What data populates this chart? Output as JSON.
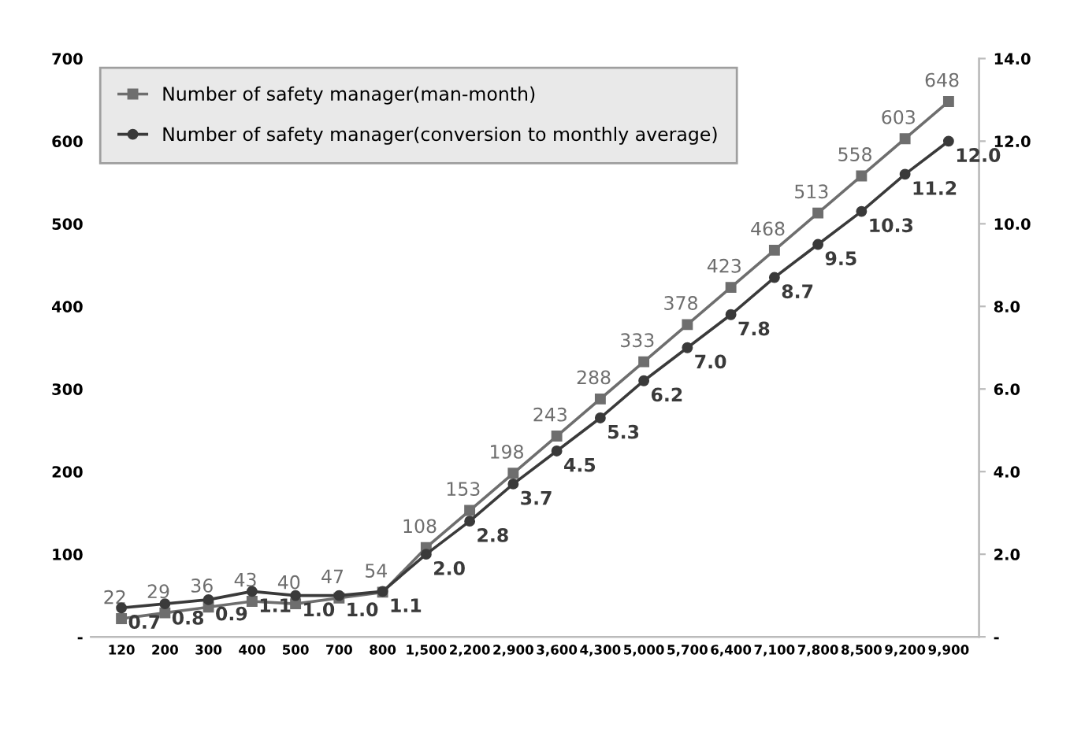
{
  "chart_data": {
    "type": "line",
    "categories": [
      "120",
      "200",
      "300",
      "400",
      "500",
      "700",
      "800",
      "1,500",
      "2,200",
      "2,900",
      "3,600",
      "4,300",
      "5,000",
      "5,700",
      "6,400",
      "7,100",
      "7,800",
      "8,500",
      "9,200",
      "9,900"
    ],
    "series": [
      {
        "name": "Number of safety manager(man-month)",
        "color": "#6e6e6e",
        "marker": "square",
        "values": [
          22,
          29,
          36,
          43,
          40,
          47,
          54,
          108,
          153,
          198,
          243,
          288,
          333,
          378,
          423,
          468,
          513,
          558,
          603,
          648
        ]
      },
      {
        "name": "Number of safety manager(conversion to monthly average)",
        "color": "#3a3a3a",
        "marker": "circle",
        "axis": "y2",
        "values": [
          0.7,
          0.8,
          0.9,
          1.1,
          1.0,
          1.0,
          1.1,
          2.0,
          2.8,
          3.7,
          4.5,
          5.3,
          6.2,
          7.0,
          7.8,
          8.7,
          9.5,
          10.3,
          11.2,
          12.0
        ],
        "value_labels": [
          "0.7",
          "0.8",
          "0.9",
          "1.1",
          "1.0",
          "1.0",
          "1.1",
          "2.0",
          "2.8",
          "3.7",
          "4.5",
          "5.3",
          "6.2",
          "7.0",
          "7.8",
          "8.7",
          "9.5",
          "10.3",
          "11.2",
          "12.0"
        ]
      }
    ],
    "ylim": [
      0,
      700
    ],
    "yticks": [
      {
        "value": 0,
        "label": "-"
      },
      100,
      200,
      300,
      400,
      500,
      600,
      700
    ],
    "y2lim": [
      0,
      14
    ],
    "y2ticks": [
      {
        "value": 0,
        "label": "-"
      },
      {
        "value": 2,
        "label": "2.0"
      },
      {
        "value": 4,
        "label": "4.0"
      },
      {
        "value": 6,
        "label": "6.0"
      },
      {
        "value": 8,
        "label": "8.0"
      },
      {
        "value": 10,
        "label": "10.0"
      },
      {
        "value": 12,
        "label": "12.0"
      },
      {
        "value": 14,
        "label": "14.0"
      }
    ],
    "data_labels": true,
    "legend": "top left",
    "grid": false,
    "line_style": "solid"
  }
}
